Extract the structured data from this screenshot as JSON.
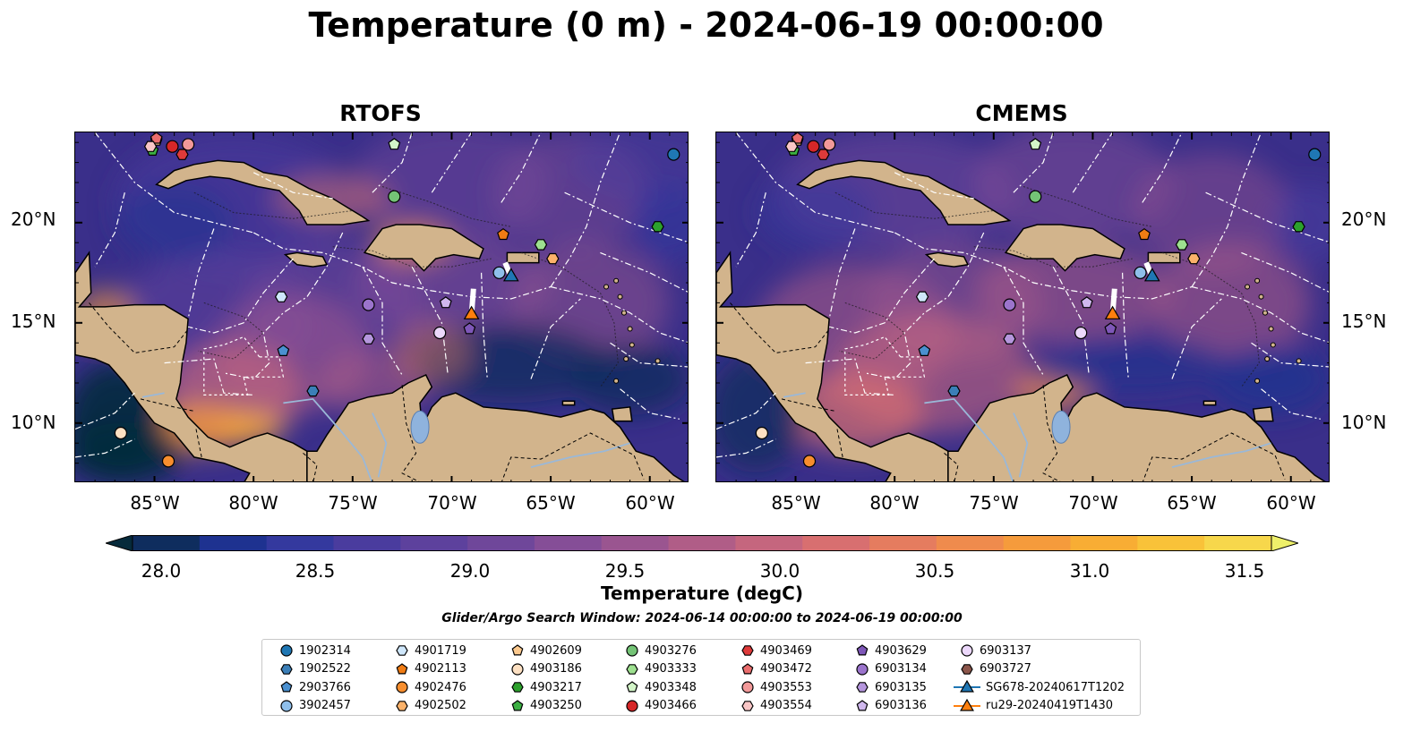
{
  "figure": {
    "title": "Temperature (0 m) - 2024-06-19 00:00:00",
    "search_window": "Glider/Argo Search Window: 2024-06-14 00:00:00 to 2024-06-19 00:00:00"
  },
  "panels": [
    {
      "title": "RTOFS"
    },
    {
      "title": "CMEMS"
    }
  ],
  "map_extent": {
    "lon_min": -89,
    "lon_max": -58,
    "lat_min": 7,
    "lat_max": 24.5
  },
  "axes": {
    "lat_ticks": [
      "20°N",
      "15°N",
      "10°N"
    ],
    "lon_ticks": [
      "85°W",
      "80°W",
      "75°W",
      "70°W",
      "65°W",
      "60°W"
    ]
  },
  "colorbar": {
    "title": "Temperature (degC)",
    "tick_labels": [
      "28.0",
      "28.5",
      "29.0",
      "29.5",
      "30.0",
      "30.5",
      "31.0",
      "31.5"
    ],
    "colors": [
      "#062a3b",
      "#0f2d5e",
      "#1e3290",
      "#34399e",
      "#4a3c9e",
      "#5d419d",
      "#6f479a",
      "#854e97",
      "#9a5590",
      "#b05d87",
      "#c5667e",
      "#d86f70",
      "#e57c5f",
      "#ef8b4d",
      "#f59b3c",
      "#f8ad34",
      "#f9c239",
      "#f7d74b",
      "#eef06a"
    ]
  },
  "legend": {
    "items": [
      {
        "label": "1902314",
        "marker": "circle",
        "color": "#1f77b4"
      },
      {
        "label": "1902522",
        "marker": "hexagon",
        "color": "#3b7fb8"
      },
      {
        "label": "2903766",
        "marker": "pentagon",
        "color": "#4a90d0"
      },
      {
        "label": "3902457",
        "marker": "circle",
        "color": "#8fbfea"
      },
      {
        "label": "4901719",
        "marker": "hexagon",
        "color": "#cfe7fb"
      },
      {
        "label": "4902113",
        "marker": "pentagon",
        "color": "#f07c14"
      },
      {
        "label": "4902476",
        "marker": "circle",
        "color": "#f78e2e"
      },
      {
        "label": "4902502",
        "marker": "hexagon",
        "color": "#fbb26a"
      },
      {
        "label": "4902609",
        "marker": "pentagon",
        "color": "#fcc98e"
      },
      {
        "label": "4903186",
        "marker": "circle",
        "color": "#fde0c2"
      },
      {
        "label": "4903217",
        "marker": "hexagon",
        "color": "#2ca02c"
      },
      {
        "label": "4903250",
        "marker": "pentagon",
        "color": "#3cb043"
      },
      {
        "label": "4903276",
        "marker": "circle",
        "color": "#74c476"
      },
      {
        "label": "4903333",
        "marker": "hexagon",
        "color": "#9de08f"
      },
      {
        "label": "4903348",
        "marker": "pentagon",
        "color": "#d3f5c8"
      },
      {
        "label": "4903466",
        "marker": "circle",
        "color": "#d62728"
      },
      {
        "label": "4903469",
        "marker": "hexagon",
        "color": "#de3a3a"
      },
      {
        "label": "4903472",
        "marker": "pentagon",
        "color": "#ea6d6d"
      },
      {
        "label": "4903553",
        "marker": "circle",
        "color": "#f29999"
      },
      {
        "label": "4903554",
        "marker": "hexagon",
        "color": "#f9c6c6"
      },
      {
        "label": "4903629",
        "marker": "pentagon",
        "color": "#7e57b8"
      },
      {
        "label": "6903134",
        "marker": "circle",
        "color": "#9b74cc"
      },
      {
        "label": "6903135",
        "marker": "hexagon",
        "color": "#b596dd"
      },
      {
        "label": "6903136",
        "marker": "pentagon",
        "color": "#d0b8ee"
      },
      {
        "label": "6903137",
        "marker": "circle",
        "color": "#ecd8fb"
      },
      {
        "label": "6903727",
        "marker": "hexagon",
        "color": "#8c564b"
      },
      {
        "label": "SG678-20240617T1202",
        "marker": "triangle-line",
        "color": "#1f77b4"
      },
      {
        "label": "ru29-20240419T1430",
        "marker": "triangle-line",
        "color": "#ff7f0e"
      }
    ]
  },
  "floats": [
    {
      "id": "1902314",
      "lon": -58.8,
      "lat": 23.4
    },
    {
      "id": "1902522",
      "lon": -77.0,
      "lat": 11.6
    },
    {
      "id": "2903766",
      "lon": -78.5,
      "lat": 13.6
    },
    {
      "id": "3902457",
      "lon": -67.6,
      "lat": 17.5
    },
    {
      "id": "4901719",
      "lon": -78.6,
      "lat": 16.3
    },
    {
      "id": "4902113",
      "lon": -67.4,
      "lat": 19.4
    },
    {
      "id": "4902476",
      "lon": -84.3,
      "lat": 8.1
    },
    {
      "id": "4902502",
      "lon": -64.9,
      "lat": 18.2
    },
    {
      "id": "4902609",
      "lon": -84.9,
      "lat": 24.1
    },
    {
      "id": "4903186",
      "lon": -86.7,
      "lat": 9.5
    },
    {
      "id": "4903217",
      "lon": -59.6,
      "lat": 19.8
    },
    {
      "id": "4903250",
      "lon": -85.1,
      "lat": 23.6
    },
    {
      "id": "4903276",
      "lon": -72.9,
      "lat": 21.3
    },
    {
      "id": "4903333",
      "lon": -65.5,
      "lat": 18.9
    },
    {
      "id": "4903348",
      "lon": -72.9,
      "lat": 23.9
    },
    {
      "id": "4903466",
      "lon": -84.1,
      "lat": 23.8
    },
    {
      "id": "4903469",
      "lon": -83.6,
      "lat": 23.4
    },
    {
      "id": "4903472",
      "lon": -84.9,
      "lat": 24.2
    },
    {
      "id": "4903553",
      "lon": -83.3,
      "lat": 23.9
    },
    {
      "id": "4903554",
      "lon": -85.2,
      "lat": 23.8
    },
    {
      "id": "4903629",
      "lon": -69.1,
      "lat": 14.7
    },
    {
      "id": "6903134",
      "lon": -74.2,
      "lat": 15.9
    },
    {
      "id": "6903135",
      "lon": -74.2,
      "lat": 14.2
    },
    {
      "id": "6903136",
      "lon": -70.3,
      "lat": 16.0
    },
    {
      "id": "6903137",
      "lon": -70.6,
      "lat": 14.5
    }
  ],
  "gliders": [
    {
      "id": "SG678-20240617T1202",
      "color": "#1f77b4",
      "lon": -67.0,
      "lat": 17.3,
      "track": [
        [
          -67.3,
          18.0
        ],
        [
          -67.0,
          17.3
        ]
      ]
    },
    {
      "id": "ru29-20240419T1430",
      "color": "#ff7f0e",
      "lon": -69.0,
      "lat": 15.4,
      "track": [
        [
          -68.9,
          16.7
        ],
        [
          -69.0,
          15.4
        ]
      ]
    }
  ]
}
